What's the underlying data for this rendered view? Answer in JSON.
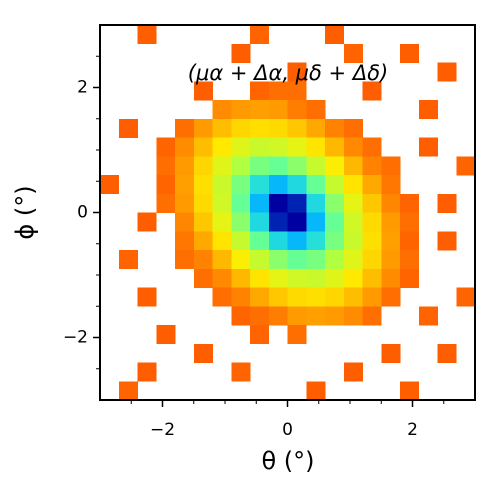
{
  "chart_data": {
    "type": "heatmap",
    "annotation": "(μα + Δα, μδ + Δδ)",
    "xlabel": "θ (°)",
    "ylabel": "ϕ (°)",
    "xlim": [
      -3,
      3
    ],
    "ylim": [
      -3,
      3
    ],
    "xticks": [
      {
        "value": -2,
        "label": "−2"
      },
      0,
      2
    ],
    "yticks": [
      {
        "value": -2,
        "label": "−2"
      },
      0,
      2
    ],
    "xminorticks": [
      -2.5,
      -1.5,
      -1,
      -0.5,
      0.5,
      1,
      1.5,
      2.5
    ],
    "yminorticks": [
      -2.5,
      -1.5,
      -1,
      -0.5,
      0.5,
      1,
      1.5,
      2.5
    ],
    "xbins": [
      -3,
      -2.7,
      -2.4,
      -2.1,
      -1.8,
      -1.5,
      -1.2,
      -0.9,
      -0.6,
      -0.3,
      0,
      0.3,
      0.6,
      0.9,
      1.2,
      1.5,
      1.8,
      2.1,
      2.4,
      2.7,
      3
    ],
    "ybins": [
      3,
      2.7,
      2.4,
      2.1,
      1.8,
      1.5,
      1.2,
      0.9,
      0.6,
      0.3,
      0,
      -0.3,
      -0.6,
      -0.9,
      -1.2,
      -1.5,
      -1.8,
      -2.1,
      -2.4,
      -2.7,
      -3
    ],
    "colorscale": [
      [
        0,
        "#ff4000"
      ],
      [
        25,
        "#ff8c00"
      ],
      [
        45,
        "#ffee00"
      ],
      [
        60,
        "#b0ff40"
      ],
      [
        72,
        "#40ffc0"
      ],
      [
        82,
        "#00b0ff"
      ],
      [
        92,
        "#0000a0"
      ]
    ],
    "z": [
      [
        null,
        null,
        10,
        null,
        null,
        null,
        null,
        null,
        12,
        null,
        null,
        null,
        10,
        null,
        null,
        null,
        null,
        null,
        null,
        null
      ],
      [
        null,
        null,
        null,
        null,
        null,
        null,
        null,
        10,
        null,
        null,
        null,
        null,
        null,
        12,
        null,
        null,
        10,
        null,
        null,
        null
      ],
      [
        null,
        null,
        null,
        null,
        null,
        null,
        null,
        null,
        null,
        null,
        10,
        null,
        null,
        null,
        null,
        null,
        null,
        null,
        10,
        null
      ],
      [
        null,
        null,
        null,
        null,
        null,
        10,
        null,
        null,
        12,
        15,
        15,
        null,
        null,
        null,
        10,
        null,
        null,
        null,
        null,
        null
      ],
      [
        null,
        null,
        null,
        null,
        null,
        null,
        25,
        28,
        29,
        28,
        20,
        15,
        null,
        null,
        null,
        null,
        null,
        10,
        null,
        null
      ],
      [
        null,
        10,
        null,
        null,
        15,
        28,
        35,
        40,
        42,
        41,
        37,
        31,
        22,
        15,
        null,
        null,
        null,
        null,
        null,
        null
      ],
      [
        null,
        null,
        null,
        12,
        25,
        35,
        44,
        51,
        55,
        54,
        50,
        43,
        34,
        24,
        15,
        null,
        null,
        10,
        null,
        null
      ],
      [
        null,
        null,
        null,
        15,
        28,
        40,
        51,
        60,
        66,
        68,
        64,
        56,
        46,
        34,
        22,
        15,
        null,
        null,
        null,
        12
      ],
      [
        10,
        null,
        null,
        12,
        29,
        42,
        55,
        66,
        76,
        81,
        77,
        68,
        56,
        43,
        31,
        18,
        null,
        null,
        null,
        null
      ],
      [
        null,
        null,
        null,
        15,
        28,
        41,
        54,
        68,
        81,
        92,
        90,
        77,
        64,
        50,
        37,
        23,
        12,
        null,
        10,
        null
      ],
      [
        null,
        null,
        10,
        null,
        23,
        37,
        50,
        64,
        77,
        90,
        92,
        81,
        68,
        54,
        41,
        28,
        15,
        null,
        null,
        null
      ],
      [
        null,
        null,
        null,
        null,
        18,
        31,
        43,
        56,
        68,
        77,
        81,
        76,
        66,
        55,
        42,
        29,
        12,
        null,
        10,
        null
      ],
      [
        null,
        12,
        null,
        null,
        15,
        22,
        34,
        46,
        56,
        64,
        68,
        66,
        60,
        51,
        40,
        28,
        15,
        null,
        null,
        null
      ],
      [
        null,
        null,
        null,
        null,
        null,
        15,
        24,
        34,
        43,
        50,
        54,
        55,
        51,
        44,
        35,
        25,
        12,
        null,
        null,
        null
      ],
      [
        null,
        null,
        10,
        null,
        null,
        null,
        15,
        22,
        31,
        37,
        41,
        42,
        40,
        35,
        28,
        15,
        null,
        null,
        null,
        12
      ],
      [
        null,
        null,
        null,
        null,
        null,
        null,
        null,
        12,
        15,
        20,
        28,
        29,
        28,
        25,
        15,
        null,
        null,
        12,
        null,
        null
      ],
      [
        null,
        null,
        null,
        10,
        null,
        null,
        null,
        null,
        12,
        null,
        15,
        null,
        null,
        null,
        null,
        null,
        null,
        null,
        null,
        null
      ],
      [
        null,
        null,
        null,
        null,
        null,
        10,
        null,
        null,
        null,
        null,
        null,
        null,
        null,
        null,
        null,
        10,
        null,
        null,
        10,
        null
      ],
      [
        null,
        null,
        10,
        null,
        null,
        null,
        null,
        12,
        null,
        null,
        null,
        null,
        null,
        10,
        null,
        null,
        null,
        null,
        null,
        null
      ],
      [
        null,
        12,
        null,
        null,
        null,
        null,
        null,
        null,
        null,
        null,
        null,
        10,
        null,
        null,
        null,
        null,
        10,
        null,
        null,
        null
      ]
    ]
  }
}
